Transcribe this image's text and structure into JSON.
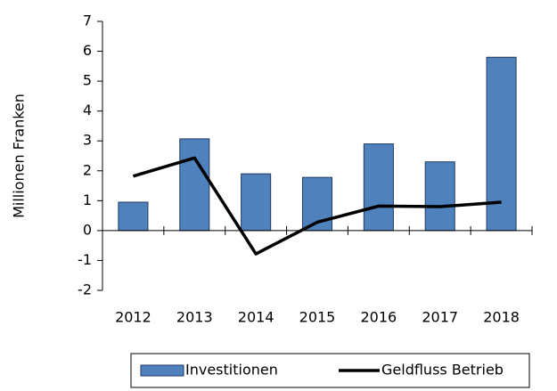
{
  "chart_data": {
    "type": "combo",
    "y_label": "Millionen Franken",
    "categories": [
      "2012",
      "2013",
      "2014",
      "2015",
      "2016",
      "2017",
      "2018"
    ],
    "series": [
      {
        "name": "Investitionen",
        "type": "bar",
        "color": "#4f81bd",
        "values": [
          0.95,
          3.07,
          1.9,
          1.78,
          2.9,
          2.3,
          5.8
        ]
      },
      {
        "name": "Geldfluss Betrieb",
        "type": "line",
        "color": "#000000",
        "values": [
          1.82,
          2.43,
          -0.78,
          0.28,
          0.82,
          0.8,
          0.95
        ]
      }
    ],
    "ylim": [
      -2,
      7
    ],
    "yticks": [
      -2,
      -1,
      0,
      1,
      2,
      3,
      4,
      5,
      6,
      7
    ],
    "legend": "bottom"
  }
}
